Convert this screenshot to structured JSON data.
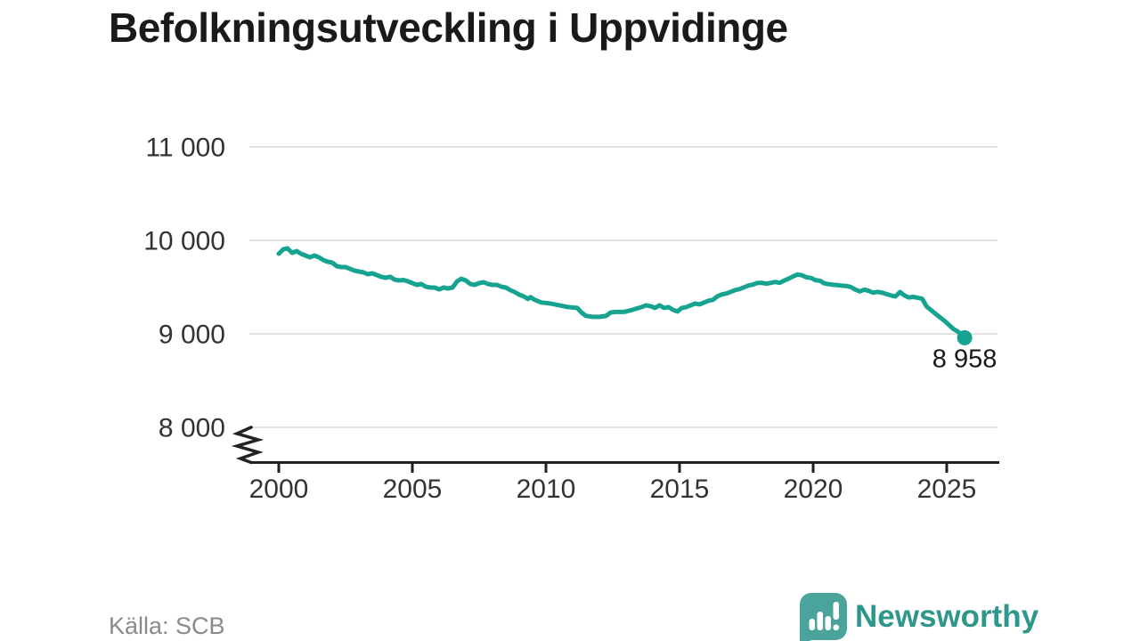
{
  "header": {
    "title": "Befolkningsutveckling i Uppvidinge"
  },
  "footer": {
    "source": "Källa: SCB",
    "brand": "Newsworthy"
  },
  "colors": {
    "line": "#16a38f",
    "grid": "#e2e2e2",
    "axis": "#222222",
    "logo_bubble": "#4aa49b",
    "brand_text": "#2f968c"
  },
  "chart_data": {
    "type": "line",
    "title": "Befolkningsutveckling i Uppvidinge",
    "xlabel": "",
    "ylabel": "",
    "x_ticks": [
      2000,
      2005,
      2010,
      2015,
      2020,
      2025
    ],
    "x_tick_labels": [
      "2000",
      "2005",
      "2010",
      "2015",
      "2020",
      "2025"
    ],
    "y_ticks": [
      8000,
      9000,
      10000,
      11000
    ],
    "y_tick_labels": [
      "8 000",
      "9 000",
      "10 000",
      "11 000"
    ],
    "ylim": [
      8000,
      11000
    ],
    "xlim": [
      2000,
      2026
    ],
    "axis_break": true,
    "grid": true,
    "legend": "none",
    "end_label": "8 958",
    "latest_value": 8958,
    "series": [
      {
        "name": "Befolkning",
        "x": [
          2000.0,
          2000.17,
          2000.33,
          2000.5,
          2000.67,
          2000.83,
          2001.0,
          2001.17,
          2001.33,
          2001.5,
          2001.67,
          2001.83,
          2002.0,
          2002.17,
          2002.33,
          2002.5,
          2002.67,
          2002.83,
          2003.0,
          2003.17,
          2003.33,
          2003.5,
          2003.67,
          2003.83,
          2004.0,
          2004.17,
          2004.33,
          2004.5,
          2004.67,
          2004.83,
          2005.0,
          2005.17,
          2005.33,
          2005.5,
          2005.67,
          2005.83,
          2006.0,
          2006.17,
          2006.33,
          2006.5,
          2006.67,
          2006.83,
          2007.0,
          2007.17,
          2007.33,
          2007.5,
          2007.67,
          2007.83,
          2008.0,
          2008.17,
          2008.33,
          2008.5,
          2008.67,
          2008.83,
          2009.0,
          2009.17,
          2009.33,
          2009.42,
          2009.58,
          2009.83,
          2010.17,
          2010.5,
          2010.83,
          2011.17,
          2011.33,
          2011.5,
          2011.75,
          2012.0,
          2012.25,
          2012.42,
          2012.58,
          2012.92,
          2013.25,
          2013.58,
          2013.75,
          2013.92,
          2014.08,
          2014.25,
          2014.42,
          2014.58,
          2014.75,
          2014.92,
          2015.08,
          2015.25,
          2015.42,
          2015.58,
          2015.75,
          2015.92,
          2016.08,
          2016.25,
          2016.42,
          2016.58,
          2016.75,
          2016.92,
          2017.08,
          2017.25,
          2017.42,
          2017.58,
          2017.75,
          2017.92,
          2018.08,
          2018.25,
          2018.42,
          2018.58,
          2018.75,
          2018.92,
          2019.08,
          2019.25,
          2019.42,
          2019.58,
          2019.75,
          2019.92,
          2020.08,
          2020.25,
          2020.42,
          2020.58,
          2020.75,
          2020.92,
          2021.08,
          2021.25,
          2021.42,
          2021.58,
          2021.75,
          2021.92,
          2022.08,
          2022.25,
          2022.42,
          2022.58,
          2022.75,
          2022.92,
          2023.08,
          2023.25,
          2023.42,
          2023.58,
          2023.75,
          2023.92,
          2024.08,
          2024.25,
          2024.58,
          2024.92,
          2025.25,
          2025.42,
          2025.58,
          2025.67
        ],
        "y": [
          9857,
          9905,
          9914,
          9867,
          9886,
          9857,
          9838,
          9819,
          9838,
          9819,
          9790,
          9771,
          9762,
          9724,
          9714,
          9714,
          9695,
          9676,
          9667,
          9657,
          9638,
          9648,
          9629,
          9610,
          9600,
          9610,
          9581,
          9571,
          9576,
          9562,
          9543,
          9524,
          9533,
          9505,
          9495,
          9495,
          9476,
          9495,
          9486,
          9495,
          9560,
          9590,
          9571,
          9533,
          9524,
          9543,
          9552,
          9533,
          9524,
          9524,
          9505,
          9495,
          9467,
          9448,
          9419,
          9400,
          9373,
          9392,
          9364,
          9335,
          9325,
          9306,
          9287,
          9277,
          9229,
          9191,
          9182,
          9182,
          9191,
          9229,
          9234,
          9234,
          9258,
          9287,
          9306,
          9296,
          9277,
          9306,
          9277,
          9287,
          9258,
          9239,
          9277,
          9287,
          9306,
          9325,
          9315,
          9335,
          9354,
          9364,
          9402,
          9421,
          9431,
          9450,
          9469,
          9479,
          9498,
          9517,
          9527,
          9546,
          9546,
          9536,
          9546,
          9555,
          9546,
          9570,
          9590,
          9615,
          9635,
          9627,
          9605,
          9598,
          9575,
          9569,
          9540,
          9531,
          9525,
          9521,
          9515,
          9512,
          9500,
          9473,
          9454,
          9473,
          9460,
          9440,
          9450,
          9440,
          9425,
          9410,
          9400,
          9448,
          9410,
          9390,
          9395,
          9385,
          9375,
          9291,
          9215,
          9138,
          9052,
          9023,
          8990,
          8958
        ]
      }
    ]
  }
}
